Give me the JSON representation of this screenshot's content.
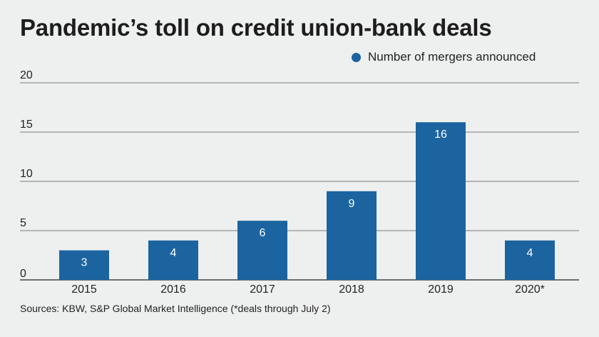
{
  "title": "Pandemic’s toll on credit union-bank deals",
  "source": "Sources: KBW, S&P Global Market Intelligence (*deals through July 2)",
  "colors": {
    "bar": "#1b64a0",
    "grid": "#555555",
    "bar_label": "#ffffff"
  },
  "chart_data": {
    "type": "bar",
    "title": "Pandemic’s toll on credit union-bank deals",
    "xlabel": "",
    "ylabel": "",
    "categories": [
      "2015",
      "2016",
      "2017",
      "2018",
      "2019",
      "2020*"
    ],
    "series": [
      {
        "name": "Number of mergers announced",
        "values": [
          3,
          4,
          6,
          9,
          16,
          4
        ]
      }
    ],
    "ylim": [
      0,
      20
    ],
    "yticks": [
      0,
      5,
      10,
      15,
      20
    ],
    "grid": true,
    "legend": "top-right",
    "data_labels": true
  }
}
